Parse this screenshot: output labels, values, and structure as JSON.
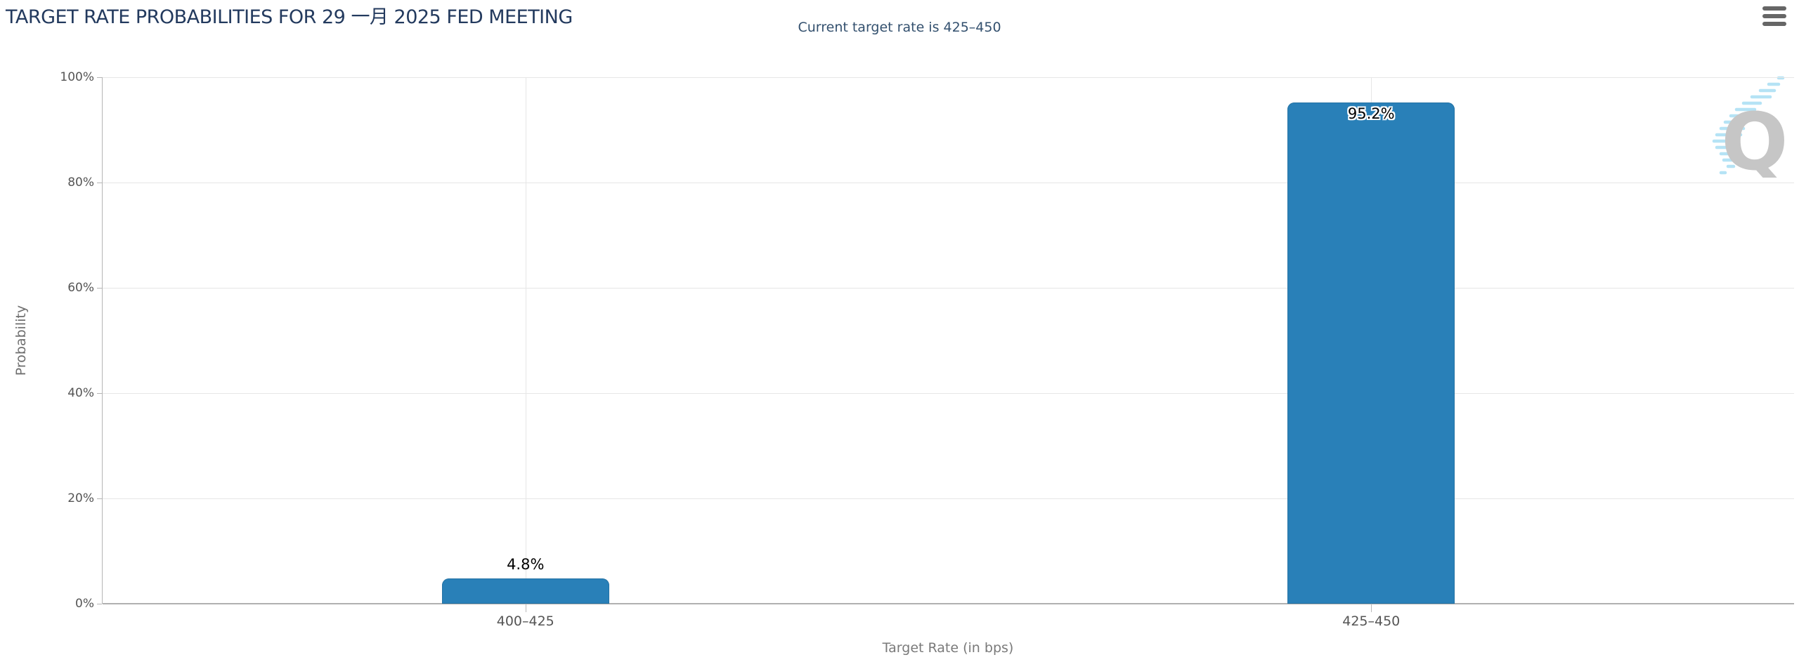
{
  "header": {
    "title": "TARGET RATE PROBABILITIES FOR 29 一月 2025 FED MEETING",
    "subtitle": "Current target rate is 425–450"
  },
  "toolbar": {
    "menu_icon": "hamburger-menu-icon"
  },
  "watermark": {
    "letter": "Q"
  },
  "chart_data": {
    "type": "bar",
    "title": "TARGET RATE PROBABILITIES FOR 29 一月 2025 FED MEETING",
    "subtitle": "Current target rate is 425–450",
    "categories": [
      "400–425",
      "425–450"
    ],
    "values": [
      4.8,
      95.2
    ],
    "value_labels": [
      "4.8%",
      "95.2%"
    ],
    "xlabel": "Target Rate (in bps)",
    "ylabel": "Probability",
    "ytick_labels": [
      "0%",
      "20%",
      "40%",
      "60%",
      "80%",
      "100%"
    ],
    "ytick_values": [
      0,
      20,
      40,
      60,
      80,
      100
    ],
    "ylim": [
      0,
      100
    ],
    "grid": true,
    "legend": false,
    "bar_color": "#2980B8",
    "bar_border_color": "#2472A4"
  },
  "colors": {
    "title": "#233A5E",
    "subtitle": "#33506E",
    "gridline": "#E6E6E6",
    "axis_line": "#B5B5B5",
    "tick_label": "#555555",
    "axis_title": "#7A7A7A",
    "data_label": "#000000",
    "menu_icon": "#666666",
    "watermark_gray": "#C6C6C6",
    "watermark_blue": "#B5E3F5"
  }
}
